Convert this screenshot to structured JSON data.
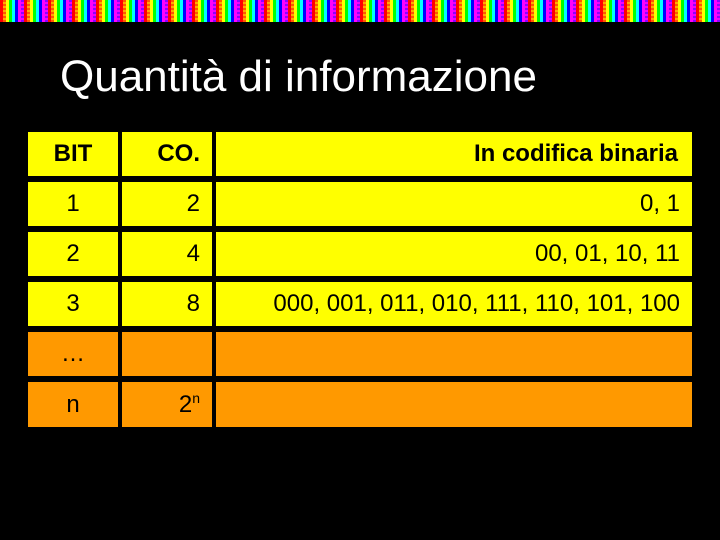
{
  "title": "Quantità di informazione",
  "table": {
    "headers": {
      "bit": "BIT",
      "comb": "CO.",
      "binary": "In codifica binaria"
    },
    "rows": [
      {
        "bit": "1",
        "comb": "2",
        "binary": "0, 1",
        "variant": "yellow"
      },
      {
        "bit": "2",
        "comb": "4",
        "binary": "00, 01, 10, 11",
        "variant": "yellow"
      },
      {
        "bit": "3",
        "comb": "8",
        "binary": "000, 001, 011, 010, 111, 110, 101, 100",
        "variant": "yellow"
      },
      {
        "bit": "…",
        "comb": "",
        "binary": "",
        "variant": "orange"
      },
      {
        "bit": "n",
        "comb_html": "2<sup>n</sup>",
        "binary": "",
        "variant": "orange"
      }
    ],
    "colors": {
      "header_bg": "#ffff00",
      "header_text": "#000000",
      "row_yellow_bg": "#ffff00",
      "row_orange_bg": "#ff9900",
      "row_text": "#000000",
      "page_bg": "#000000",
      "title_color": "#ffffff"
    },
    "typography": {
      "title_fontsize": 44,
      "cell_fontsize": 24,
      "font_family": "Verdana / Arial"
    },
    "column_widths": {
      "bit": 90,
      "comb": 90,
      "binary": "auto"
    },
    "column_align": {
      "bit": "center",
      "comb": "right",
      "binary": "right"
    },
    "spacing": {
      "row_gap": 6,
      "col_gap": 4
    }
  }
}
